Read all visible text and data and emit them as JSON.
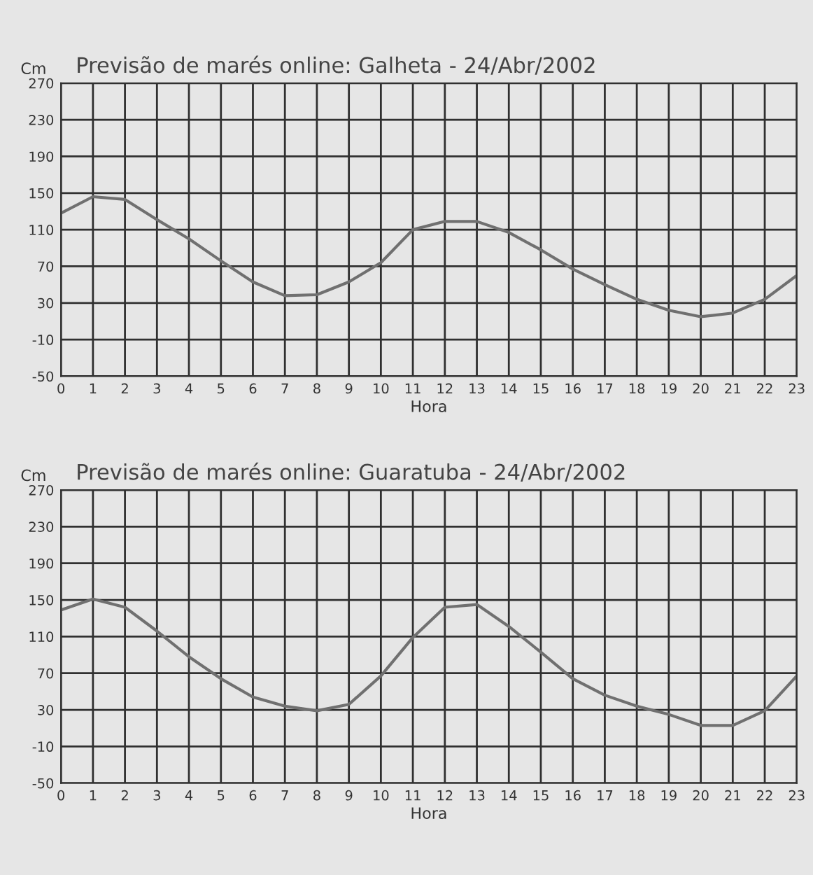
{
  "chart_data": [
    {
      "type": "line",
      "title": "Previsão de marés online: Galheta - 24/Abr/2002",
      "xlabel": "Hora",
      "ylabel": "Cm",
      "x": [
        0,
        1,
        2,
        3,
        4,
        5,
        6,
        7,
        8,
        9,
        10,
        11,
        12,
        13,
        14,
        15,
        16,
        17,
        18,
        19,
        20,
        21,
        22,
        23
      ],
      "series": [
        {
          "color": "#707070",
          "values": [
            128,
            146,
            143,
            121,
            100,
            76,
            53,
            38,
            39,
            53,
            74,
            110,
            119,
            119,
            107,
            88,
            67,
            50,
            34,
            22,
            15,
            19,
            34,
            60
          ]
        }
      ],
      "xlim": [
        0,
        23
      ],
      "xticks": [
        0,
        1,
        2,
        3,
        4,
        5,
        6,
        7,
        8,
        9,
        10,
        11,
        12,
        13,
        14,
        15,
        16,
        17,
        18,
        19,
        20,
        21,
        22,
        23
      ],
      "ylim": [
        -50,
        270
      ],
      "yticks": [
        -50,
        -10,
        30,
        70,
        110,
        150,
        190,
        230,
        270
      ],
      "grid": true,
      "legend": false,
      "marker": "none",
      "line_style": "solid"
    },
    {
      "type": "line",
      "title": "Previsão de marés online: Guaratuba - 24/Abr/2002",
      "xlabel": "Hora",
      "ylabel": "Cm",
      "x": [
        0,
        1,
        2,
        3,
        4,
        5,
        6,
        7,
        8,
        9,
        10,
        11,
        12,
        13,
        14,
        15,
        16,
        17,
        18,
        19,
        20,
        21,
        22,
        23
      ],
      "series": [
        {
          "color": "#707070",
          "values": [
            139,
            151,
            142,
            116,
            88,
            64,
            44,
            34,
            29,
            36,
            67,
            109,
            142,
            145,
            121,
            93,
            64,
            46,
            34,
            25,
            13,
            13,
            29,
            67
          ]
        }
      ],
      "xlim": [
        0,
        23
      ],
      "xticks": [
        0,
        1,
        2,
        3,
        4,
        5,
        6,
        7,
        8,
        9,
        10,
        11,
        12,
        13,
        14,
        15,
        16,
        17,
        18,
        19,
        20,
        21,
        22,
        23
      ],
      "ylim": [
        -50,
        270
      ],
      "yticks": [
        -50,
        -10,
        30,
        70,
        110,
        150,
        190,
        230,
        270
      ],
      "grid": true,
      "legend": false,
      "marker": "none",
      "line_style": "solid"
    }
  ]
}
